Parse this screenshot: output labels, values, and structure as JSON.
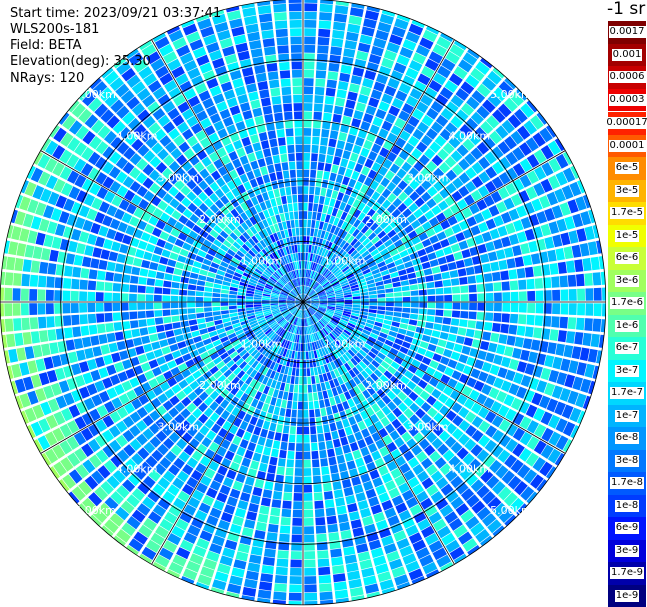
{
  "info": {
    "start_time": "Start time: 2023/09/21 03:37:41",
    "instrument": "WLS200s-181",
    "field": "Field: BETA",
    "elevation": "Elevation(deg): 35.30",
    "nrays": "NRays: 120"
  },
  "colorbar": {
    "unit": "-1 sr",
    "top_band": [
      {
        "label": "0.0017",
        "color": "#7f0000"
      },
      {
        "label": "0.001",
        "color": "#a30000"
      },
      {
        "label": "0.0006",
        "color": "#c80000"
      },
      {
        "label": "0.0003",
        "color": "#ee0000"
      }
    ],
    "bottom_band": [
      {
        "label": "0.00017",
        "color": "#ff2200"
      },
      {
        "label": "0.0001",
        "color": "#ff5a00"
      },
      {
        "label": "6e-5",
        "color": "#ff8c00"
      },
      {
        "label": "3e-5",
        "color": "#ffb400"
      },
      {
        "label": "1.7e-5",
        "color": "#ffdc00"
      },
      {
        "label": "1e-5",
        "color": "#f0ff00"
      },
      {
        "label": "6e-6",
        "color": "#c8ff37"
      },
      {
        "label": "3e-6",
        "color": "#a0ff5f"
      },
      {
        "label": "1.7e-6",
        "color": "#78ff87"
      },
      {
        "label": "1e-6",
        "color": "#50ffaf"
      },
      {
        "label": "6e-7",
        "color": "#28ffd7"
      },
      {
        "label": "3e-7",
        "color": "#00f5ff"
      },
      {
        "label": "1.7e-7",
        "color": "#00d7ff"
      },
      {
        "label": "1e-7",
        "color": "#00b4ff"
      },
      {
        "label": "6e-8",
        "color": "#0096ff"
      },
      {
        "label": "3e-8",
        "color": "#0078ff"
      },
      {
        "label": "1.7e-8",
        "color": "#005aff"
      },
      {
        "label": "1e-8",
        "color": "#003cff"
      },
      {
        "label": "6e-9",
        "color": "#0014ff"
      },
      {
        "label": "3e-9",
        "color": "#0000dc"
      },
      {
        "label": "1.7e-9",
        "color": "#0000aa"
      },
      {
        "label": "1e-9",
        "color": "#000080"
      }
    ]
  },
  "chart_data": {
    "type": "heatmap",
    "projection": "polar-ppi",
    "n_rays": 120,
    "range_rings_km": [
      1.0,
      2.0,
      3.0,
      4.0,
      5.0
    ],
    "max_range_km": 5.0,
    "ring_labels": [
      "1.00km",
      "2.00km",
      "3.00km",
      "4.00km",
      "5.00km"
    ],
    "radial_spokes_deg": [
      0,
      30,
      60,
      90,
      120,
      150,
      180,
      210,
      240,
      270,
      300,
      330
    ],
    "dominant_value_range": [
      "1e-8",
      "3e-7"
    ],
    "near_field_value": "3e-7",
    "far_west_rim_value": "6e-6",
    "grid": true
  }
}
